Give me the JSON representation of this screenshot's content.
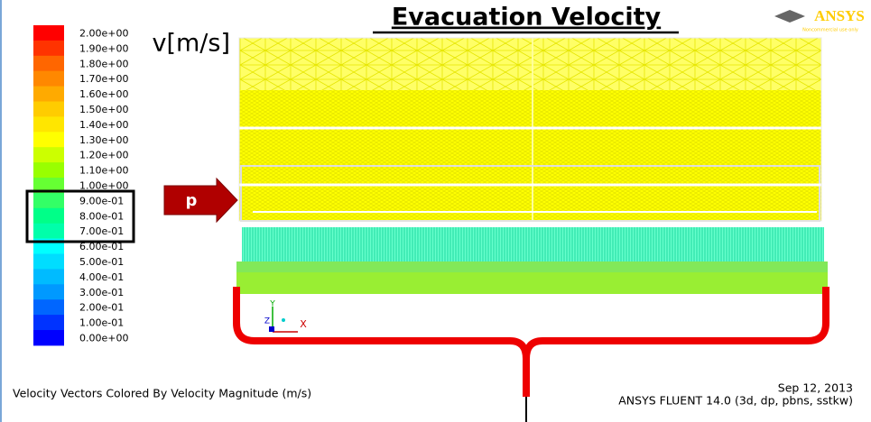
{
  "title": "Evacuation Velocity",
  "unit_label": "v[m/s]",
  "arrow_label": "p",
  "logo": {
    "name": "ANSYS",
    "note": "Noncommercial use only"
  },
  "colorbar": {
    "labels": [
      "2.00e+00",
      "1.90e+00",
      "1.80e+00",
      "1.70e+00",
      "1.60e+00",
      "1.50e+00",
      "1.40e+00",
      "1.30e+00",
      "1.20e+00",
      "1.10e+00",
      "1.00e+00",
      "9.00e-01",
      "8.00e-01",
      "7.00e-01",
      "6.00e-01",
      "5.00e-01",
      "4.00e-01",
      "3.00e-01",
      "2.00e-01",
      "1.00e-01",
      "0.00e+00"
    ],
    "colors": [
      "#ff0000",
      "#ff3300",
      "#ff6600",
      "#ff8800",
      "#ffaa00",
      "#ffcc00",
      "#ffe600",
      "#ffff00",
      "#ccff00",
      "#99ff00",
      "#66ff33",
      "#33ff66",
      "#00ff88",
      "#00ffaa",
      "#00ffff",
      "#00ddff",
      "#00bbff",
      "#0099ff",
      "#0066ff",
      "#0033ff",
      "#0000ff"
    ]
  },
  "axes_labels": {
    "y": "Y",
    "z": "Z",
    "x": "X"
  },
  "footer": {
    "description": "Velocity Vectors Colored By Velocity Magnitude (m/s)",
    "date": "Sep 12, 2013",
    "version": "ANSYS FLUENT 14.0 (3d, dp, pbns, sstkw)"
  }
}
